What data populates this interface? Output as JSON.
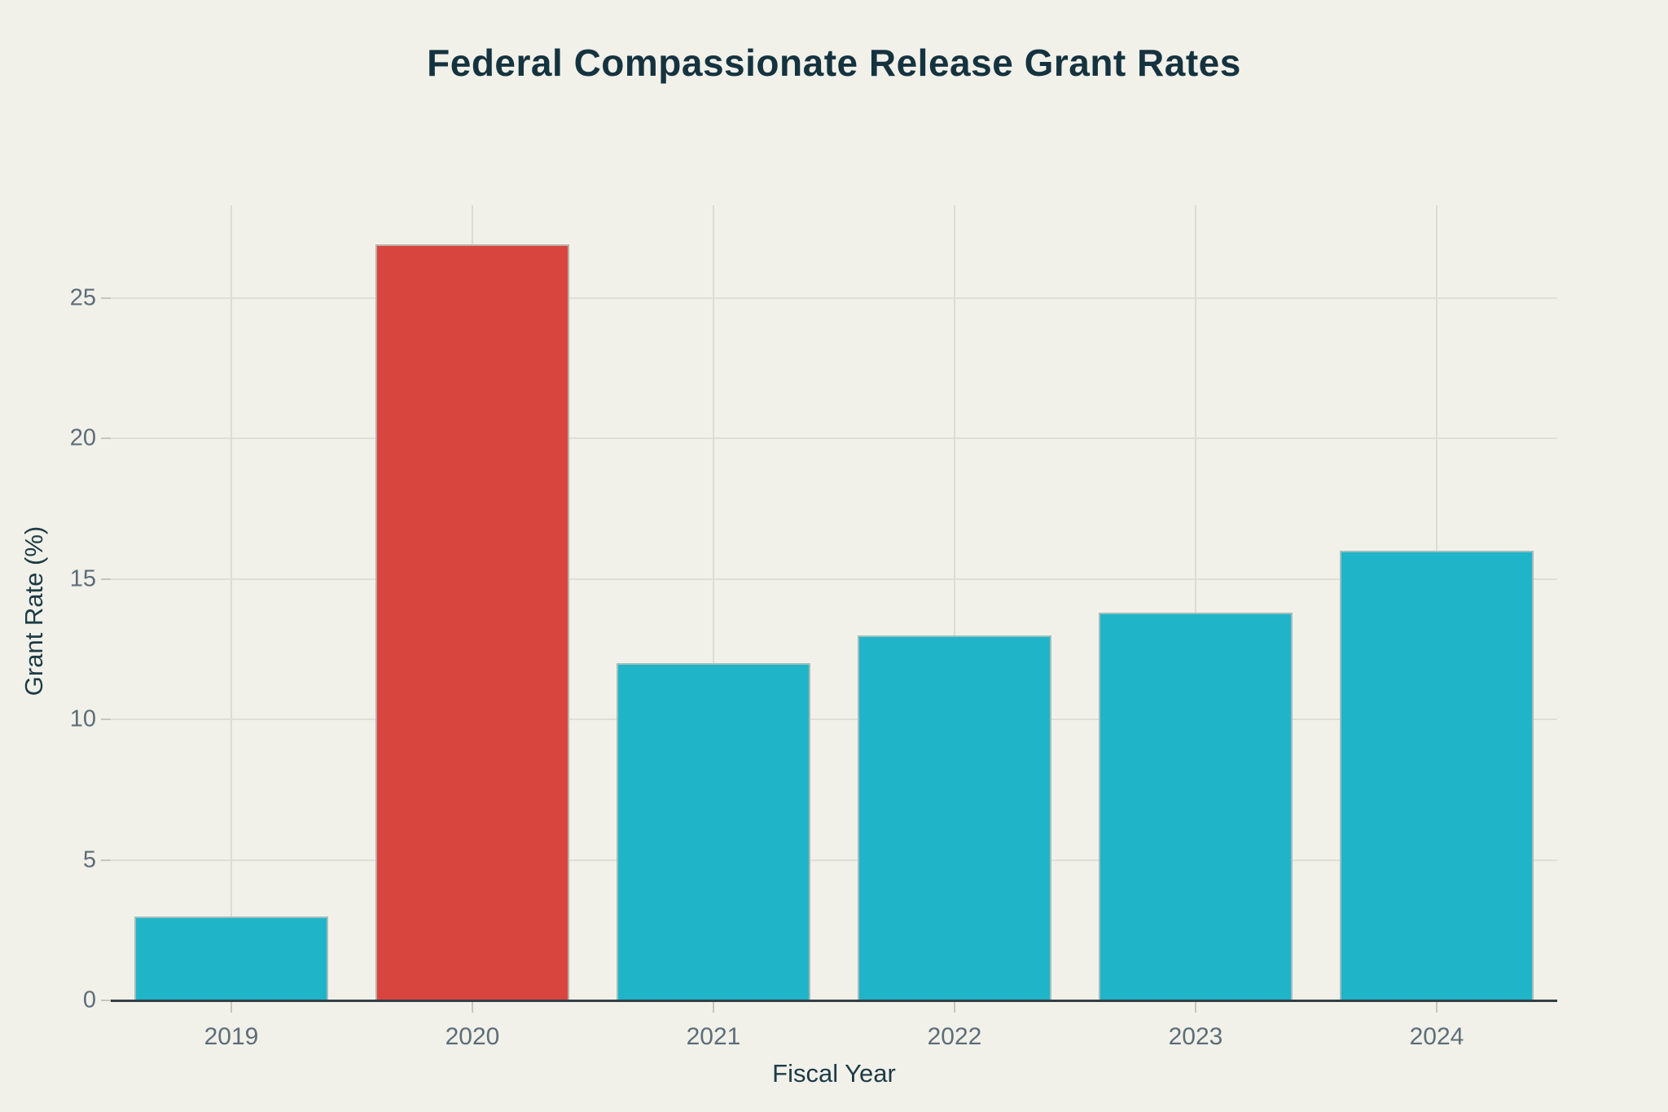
{
  "chart_data": {
    "type": "bar",
    "title": "Federal Compassionate Release Grant Rates",
    "xlabel": "Fiscal Year",
    "ylabel": "Grant Rate (%)",
    "categories": [
      "2019",
      "2020",
      "2021",
      "2022",
      "2023",
      "2024"
    ],
    "values": [
      3.0,
      26.9,
      12.0,
      13.0,
      13.8,
      16.0
    ],
    "highlight_index": 1,
    "yticks": [
      0,
      5,
      10,
      15,
      20,
      25
    ],
    "ylim": [
      0,
      28.3
    ],
    "grid": true,
    "legend": "none",
    "colors": {
      "background": "#f1f1ea",
      "bar_default": "#20b4c9",
      "bar_highlight": "#d8453f",
      "grid": "#dcdcd5",
      "axis_line": "#343f46",
      "tick_label": "#5d6d78",
      "axis_title": "#1d3b45",
      "title": "#15333f"
    }
  }
}
